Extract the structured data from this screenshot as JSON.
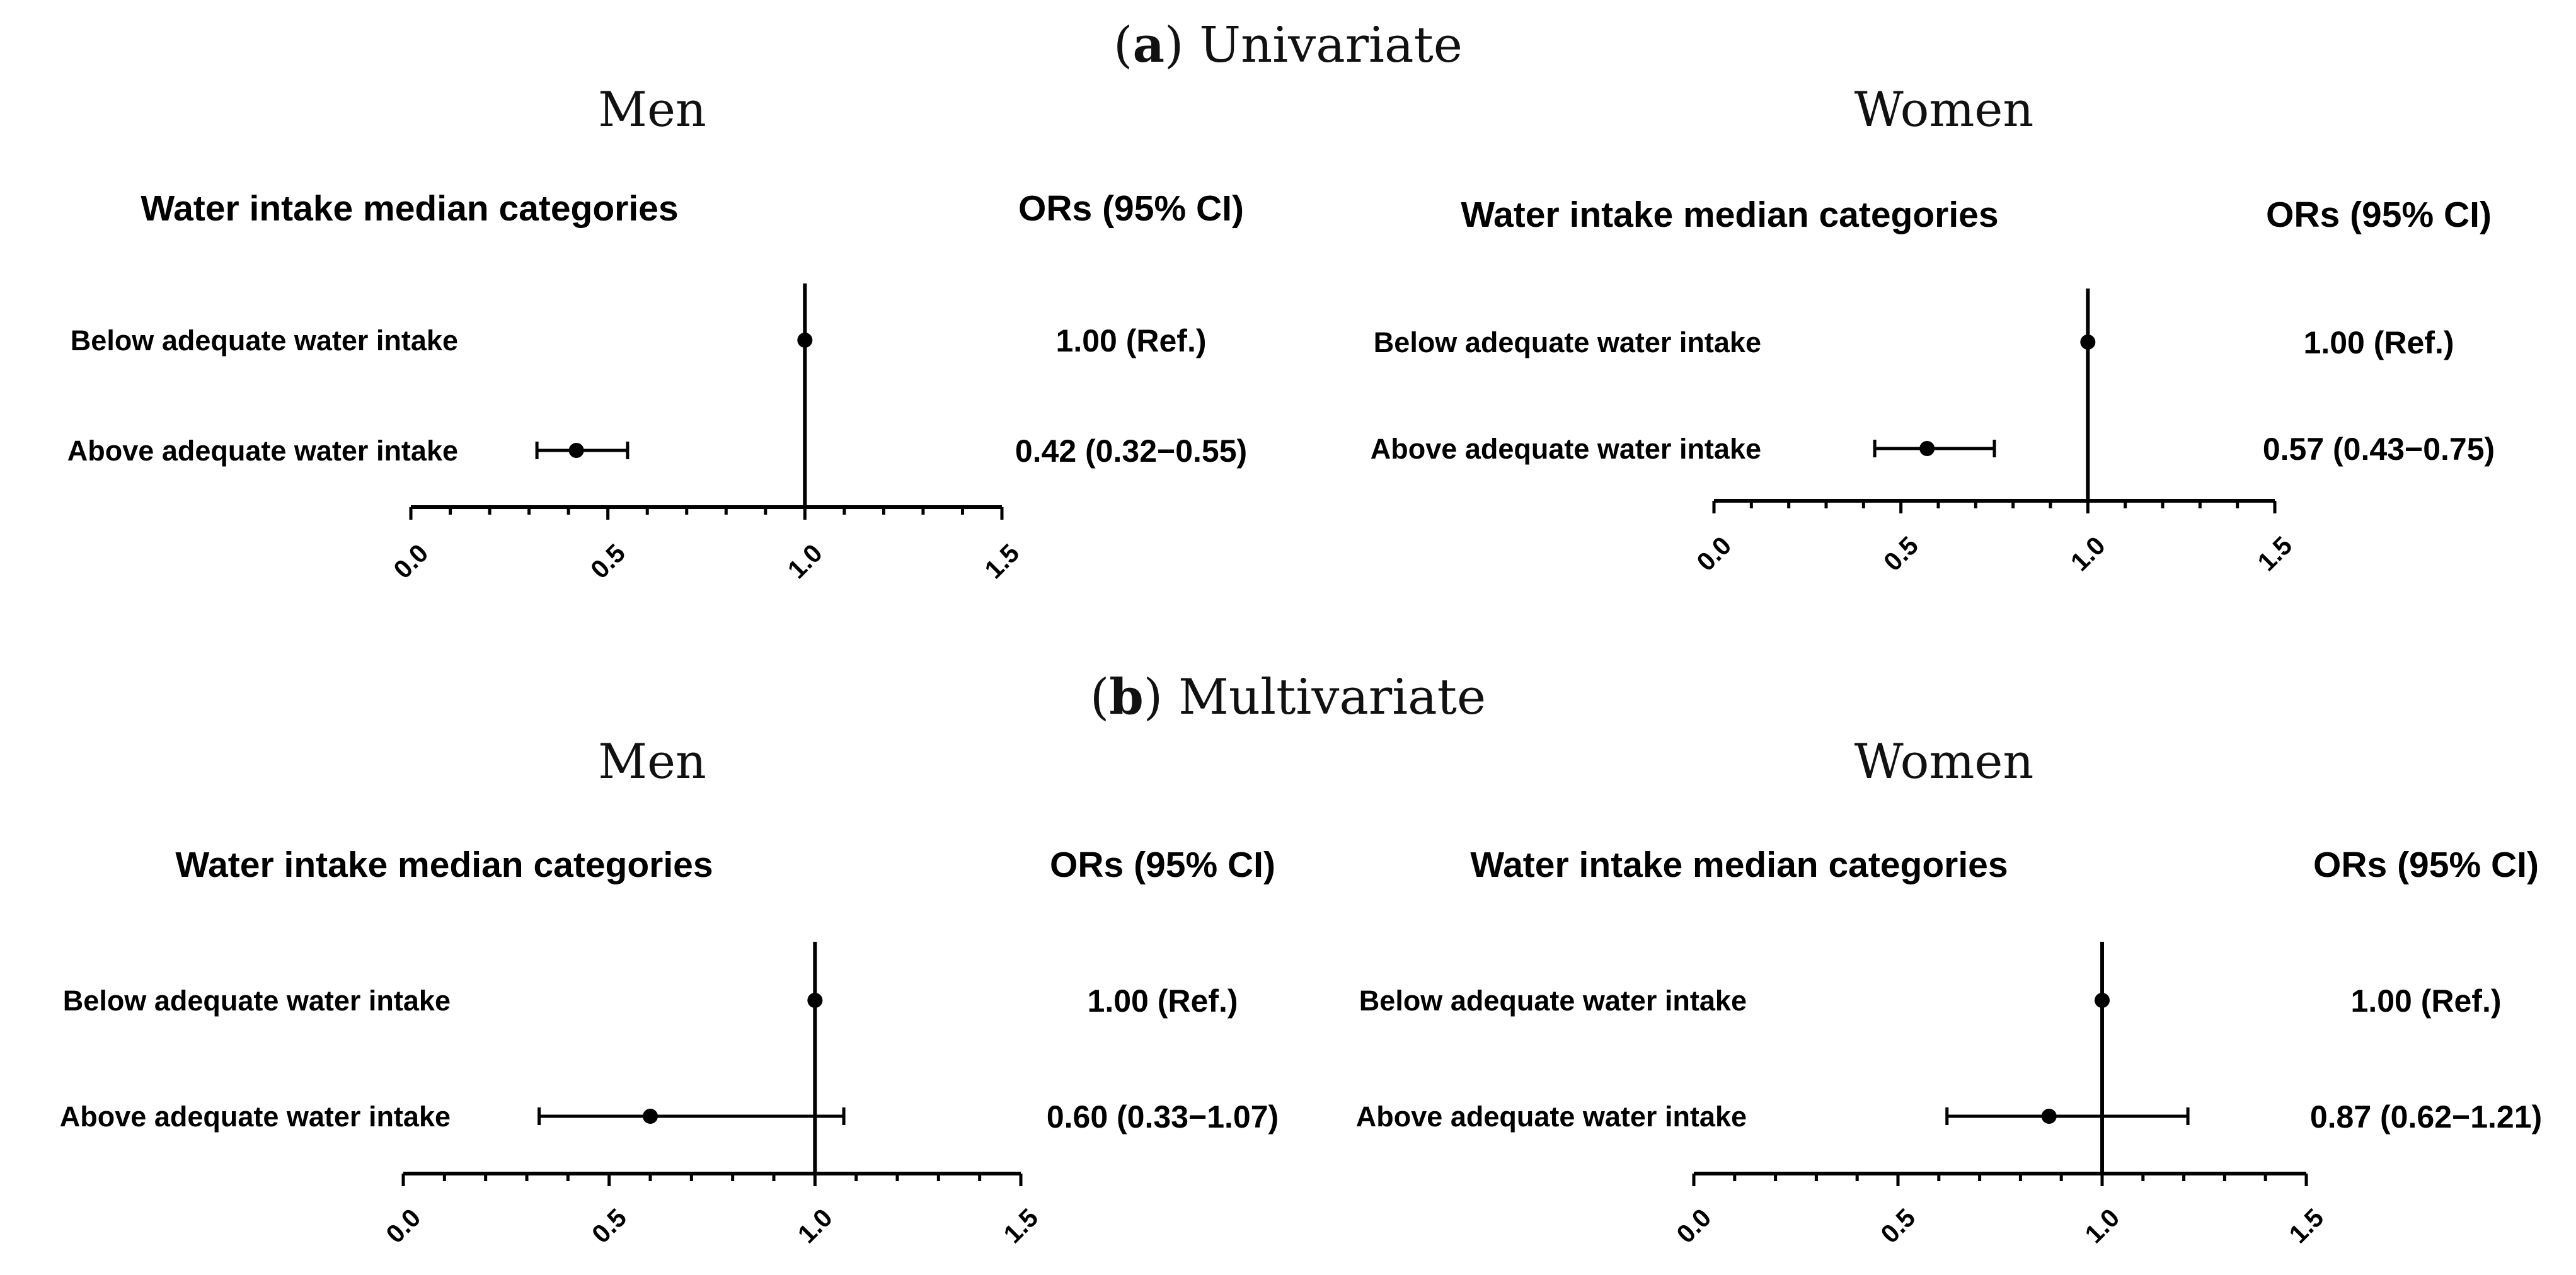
{
  "figure": {
    "sections": [
      {
        "letter": "a",
        "rest": ") Univariate",
        "open": "("
      },
      {
        "letter": "b",
        "rest": ") Multivariate",
        "open": "("
      }
    ]
  },
  "chart_data": [
    {
      "type": "forest",
      "section": "Univariate",
      "panel_title": "Men",
      "label_header": "Water intake median categories",
      "value_header": "ORs (95%  CI)",
      "xlim": [
        0.0,
        1.5
      ],
      "reference_line": 1.0,
      "ticks": [
        "0.0",
        "0.5",
        "1.0",
        "1.5"
      ],
      "rows": [
        {
          "label": "Below adequate water intake",
          "or": 1.0,
          "lower": 1.0,
          "upper": 1.0,
          "text": "1.00 (Ref.)"
        },
        {
          "label": "Above adequate water intake",
          "or": 0.42,
          "lower": 0.32,
          "upper": 0.55,
          "text": "0.42 (0.32−0.55)"
        }
      ]
    },
    {
      "type": "forest",
      "section": "Univariate",
      "panel_title": "Women",
      "label_header": "Water intake median categories",
      "value_header": "ORs (95%  CI)",
      "xlim": [
        0.0,
        1.5
      ],
      "reference_line": 1.0,
      "ticks": [
        "0.0",
        "0.5",
        "1.0",
        "1.5"
      ],
      "rows": [
        {
          "label": "Below adequate water intake",
          "or": 1.0,
          "lower": 1.0,
          "upper": 1.0,
          "text": "1.00 (Ref.)"
        },
        {
          "label": "Above adequate water intake",
          "or": 0.57,
          "lower": 0.43,
          "upper": 0.75,
          "text": "0.57 (0.43−0.75)"
        }
      ]
    },
    {
      "type": "forest",
      "section": "Multivariate",
      "panel_title": "Men",
      "label_header": "Water intake median categories",
      "value_header": "ORs (95%  CI)",
      "xlim": [
        0.0,
        1.5
      ],
      "reference_line": 1.0,
      "ticks": [
        "0.0",
        "0.5",
        "1.0",
        "1.5"
      ],
      "rows": [
        {
          "label": "Below adequate water intake",
          "or": 1.0,
          "lower": 1.0,
          "upper": 1.0,
          "text": "1.00 (Ref.)"
        },
        {
          "label": "Above adequate water intake",
          "or": 0.6,
          "lower": 0.33,
          "upper": 1.07,
          "text": "0.60 (0.33−1.07)"
        }
      ]
    },
    {
      "type": "forest",
      "section": "Multivariate",
      "panel_title": "Women",
      "label_header": "Water intake median categories",
      "value_header": "ORs (95%  CI)",
      "xlim": [
        0.0,
        1.5
      ],
      "reference_line": 1.0,
      "ticks": [
        "0.0",
        "0.5",
        "1.0",
        "1.5"
      ],
      "rows": [
        {
          "label": "Below adequate water intake",
          "or": 1.0,
          "lower": 1.0,
          "upper": 1.0,
          "text": "1.00 (Ref.)"
        },
        {
          "label": "Above adequate water intake",
          "or": 0.87,
          "lower": 0.62,
          "upper": 1.21,
          "text": "0.87 (0.62−1.21)"
        }
      ]
    }
  ]
}
